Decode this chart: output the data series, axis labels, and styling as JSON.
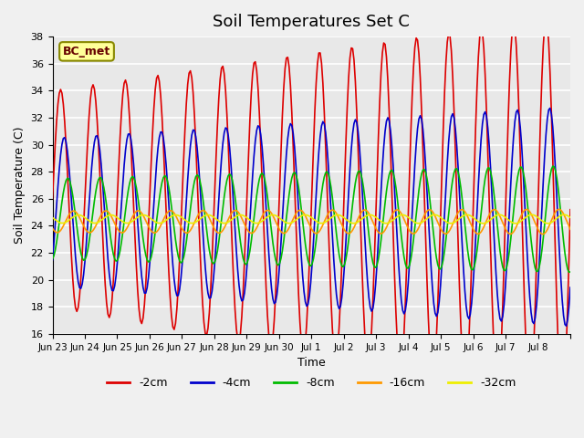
{
  "title": "Soil Temperatures Set C",
  "xlabel": "Time",
  "ylabel": "Soil Temperature (C)",
  "ylim": [
    16,
    38
  ],
  "y_ticks": [
    16,
    18,
    20,
    22,
    24,
    26,
    28,
    30,
    32,
    34,
    36,
    38
  ],
  "bg_color": "#e8e8e8",
  "grid_color": "#ffffff",
  "annotation_text": "BC_met",
  "annotation_bg": "#ffff99",
  "annotation_border": "#888800",
  "line_colors": {
    "-2cm": "#dd0000",
    "-4cm": "#0000cc",
    "-8cm": "#00bb00",
    "-16cm": "#ff9900",
    "-32cm": "#eeee00"
  },
  "legend_labels": [
    "-2cm",
    "-4cm",
    "-8cm",
    "-16cm",
    "-32cm"
  ],
  "n_days": 16,
  "samples_per_day": 24,
  "depth_params": {
    "-2cm": {
      "mean": 26.0,
      "amp": 8.0,
      "phase": 0.0,
      "amp_growth": 0.05
    },
    "-4cm": {
      "mean": 25.0,
      "amp": 5.5,
      "phase": 0.7,
      "amp_growth": 0.03
    },
    "-8cm": {
      "mean": 24.5,
      "amp": 3.0,
      "phase": 1.4,
      "amp_growth": 0.02
    },
    "-16cm": {
      "mean": 24.3,
      "amp": 0.8,
      "phase": 2.5,
      "amp_growth": 0.01
    },
    "-32cm": {
      "mean": 24.5,
      "amp": 0.3,
      "phase": 3.5,
      "amp_growth": 0.005
    }
  },
  "x_tick_labels": [
    "Jun 23",
    "Jun 24",
    "Jun 25",
    "Jun 26",
    "Jun 27",
    "Jun 28",
    "Jun 29",
    "Jun 30",
    "Jul 1",
    "Jul 2",
    "Jul 3",
    "Jul 4",
    "Jul 5",
    "Jul 6",
    "Jul 7",
    "Jul 8",
    ""
  ]
}
